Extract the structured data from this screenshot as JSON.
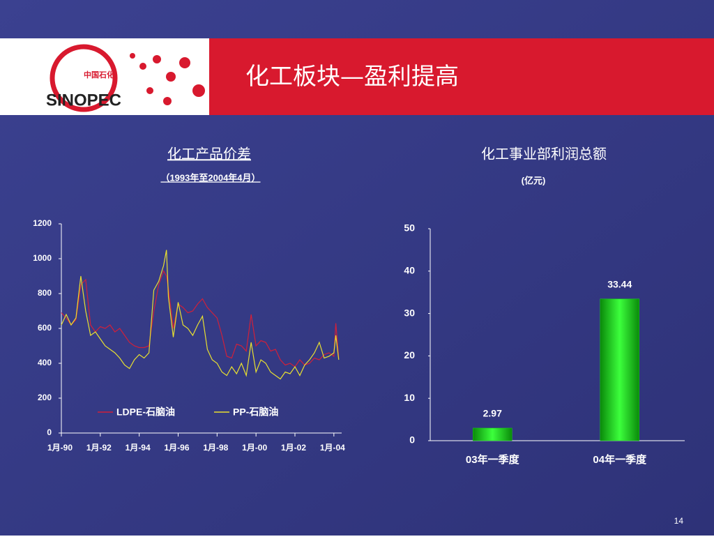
{
  "slide": {
    "title": "化工板块—盈利提高",
    "logo": {
      "cn": "中国石化",
      "en": "SINOPEC"
    },
    "page": "14"
  },
  "chart_data": [
    {
      "type": "line",
      "title": "化工产品价差",
      "subtitle": "（1993年至2004年4月）",
      "x": [
        1990,
        1990.25,
        1990.5,
        1990.75,
        1991,
        1991.25,
        1991.5,
        1991.75,
        1992,
        1992.25,
        1992.5,
        1992.75,
        1993,
        1993.25,
        1993.5,
        1993.75,
        1994,
        1994.25,
        1994.5,
        1994.75,
        1995,
        1995.25,
        1995.4,
        1995.5,
        1995.75,
        1996,
        1996.25,
        1996.5,
        1996.75,
        1997,
        1997.25,
        1997.5,
        1997.75,
        1998,
        1998.25,
        1998.5,
        1998.75,
        1999,
        1999.25,
        1999.5,
        1999.75,
        2000,
        2000.25,
        2000.5,
        2000.75,
        2001,
        2001.25,
        2001.5,
        2001.75,
        2002,
        2002.25,
        2002.5,
        2002.75,
        2003,
        2003.25,
        2003.5,
        2003.75,
        2004,
        2004.1,
        2004.25
      ],
      "series": [
        {
          "name": "LDPE-石脑油",
          "color": "#d0203a",
          "values": [
            690,
            660,
            620,
            650,
            850,
            880,
            620,
            580,
            610,
            600,
            620,
            580,
            600,
            560,
            520,
            500,
            490,
            490,
            500,
            700,
            850,
            930,
            900,
            830,
            600,
            740,
            720,
            690,
            700,
            740,
            770,
            720,
            690,
            660,
            560,
            440,
            430,
            510,
            500,
            470,
            680,
            500,
            530,
            520,
            470,
            480,
            420,
            390,
            400,
            380,
            420,
            390,
            400,
            430,
            420,
            450,
            460,
            440,
            630,
            430
          ]
        },
        {
          "name": "PP-石脑油",
          "color": "#e8e030",
          "values": [
            620,
            680,
            620,
            660,
            900,
            700,
            560,
            580,
            540,
            500,
            480,
            460,
            430,
            390,
            370,
            420,
            450,
            430,
            460,
            820,
            870,
            960,
            1050,
            780,
            550,
            750,
            620,
            600,
            560,
            620,
            670,
            480,
            420,
            400,
            350,
            330,
            380,
            340,
            400,
            330,
            520,
            350,
            420,
            400,
            350,
            330,
            310,
            350,
            340,
            380,
            330,
            390,
            420,
            460,
            520,
            430,
            440,
            460,
            560,
            420
          ]
        }
      ],
      "xlim": [
        1990,
        2004.4
      ],
      "xticks": [
        {
          "value": 1990,
          "label": "1月-90"
        },
        {
          "value": 1992,
          "label": "1月-92"
        },
        {
          "value": 1994,
          "label": "1月-94"
        },
        {
          "value": 1996,
          "label": "1月-96"
        },
        {
          "value": 1998,
          "label": "1月-98"
        },
        {
          "value": 2000,
          "label": "1月-00"
        },
        {
          "value": 2002,
          "label": "1月-02"
        },
        {
          "value": 2004,
          "label": "1月-04"
        }
      ],
      "ylim": [
        0,
        1200
      ],
      "yticks": [
        0,
        200,
        400,
        600,
        800,
        1000,
        1200
      ],
      "legend": "bottom"
    },
    {
      "type": "bar",
      "title": "化工事业部利润总额",
      "subtitle": "(亿元)",
      "categories": [
        "03年一季度",
        "04年一季度"
      ],
      "values": [
        2.97,
        33.44
      ],
      "color": "#18d018",
      "ylim": [
        0,
        50
      ],
      "yticks": [
        0,
        10,
        20,
        30,
        40,
        50
      ]
    }
  ]
}
